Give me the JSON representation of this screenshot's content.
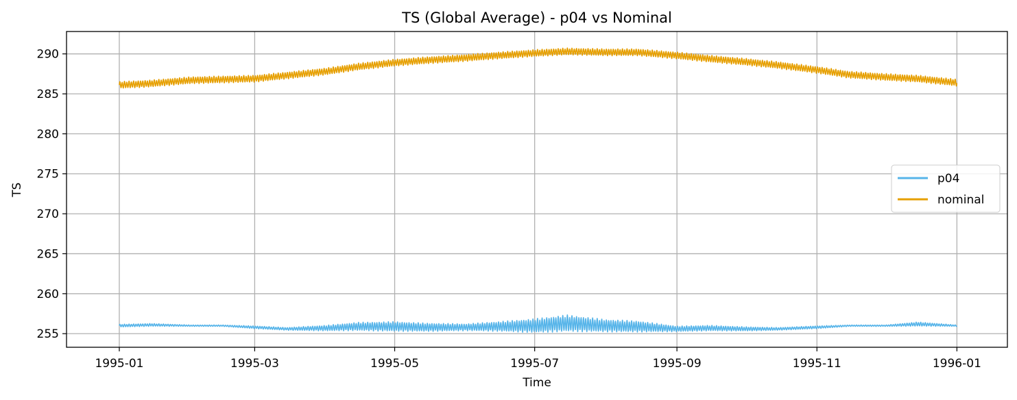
{
  "chart_data": {
    "type": "line",
    "title": "TS (Global Average) - p04 vs Nominal",
    "xlabel": "Time",
    "ylabel": "TS",
    "xlim": [
      "1994-12-09",
      "1996-01-23"
    ],
    "ylim": [
      253.3,
      292.8
    ],
    "grid": true,
    "legend_position": "right",
    "x_ticks": [
      "1995-01",
      "1995-03",
      "1995-05",
      "1995-07",
      "1995-09",
      "1995-11",
      "1996-01"
    ],
    "y_ticks": [
      255,
      260,
      265,
      270,
      275,
      280,
      285,
      290
    ],
    "series": [
      {
        "name": "p04",
        "color": "#56B4E9",
        "x": [
          "1995-01-01",
          "1995-01-15",
          "1995-02-01",
          "1995-02-15",
          "1995-03-01",
          "1995-03-15",
          "1995-04-01",
          "1995-04-15",
          "1995-05-01",
          "1995-05-15",
          "1995-06-01",
          "1995-06-15",
          "1995-07-01",
          "1995-07-15",
          "1995-08-01",
          "1995-08-15",
          "1995-09-01",
          "1995-09-15",
          "1995-10-01",
          "1995-10-15",
          "1995-11-01",
          "1995-11-15",
          "1995-12-01",
          "1995-12-15",
          "1996-01-01"
        ],
        "mean": [
          256.0,
          256.1,
          256.0,
          256.0,
          255.8,
          255.6,
          255.7,
          255.9,
          255.9,
          255.8,
          255.8,
          255.9,
          256.0,
          256.3,
          256.0,
          255.9,
          255.6,
          255.7,
          255.6,
          255.6,
          255.8,
          256.0,
          256.0,
          256.2,
          256.0
        ],
        "amplitude": [
          0.2,
          0.2,
          0.1,
          0.1,
          0.2,
          0.2,
          0.4,
          0.6,
          0.7,
          0.6,
          0.5,
          0.7,
          1.0,
          1.2,
          0.9,
          0.8,
          0.4,
          0.4,
          0.3,
          0.2,
          0.2,
          0.1,
          0.1,
          0.3,
          0.1
        ]
      },
      {
        "name": "nominal",
        "color": "#E69F00",
        "x": [
          "1995-01-01",
          "1995-01-15",
          "1995-02-01",
          "1995-02-15",
          "1995-03-01",
          "1995-03-15",
          "1995-04-01",
          "1995-04-15",
          "1995-05-01",
          "1995-05-15",
          "1995-06-01",
          "1995-06-15",
          "1995-07-01",
          "1995-07-15",
          "1995-08-01",
          "1995-08-15",
          "1995-09-01",
          "1995-09-15",
          "1995-10-01",
          "1995-10-15",
          "1995-11-01",
          "1995-11-15",
          "1995-12-01",
          "1995-12-15",
          "1996-01-01"
        ],
        "mean": [
          286.1,
          286.3,
          286.7,
          286.8,
          286.9,
          287.3,
          287.8,
          288.4,
          288.9,
          289.2,
          289.5,
          289.8,
          290.1,
          290.3,
          290.2,
          290.2,
          289.8,
          289.4,
          289.0,
          288.6,
          288.0,
          287.4,
          287.1,
          286.9,
          286.4
        ],
        "amplitude": [
          0.5,
          0.5,
          0.5,
          0.5,
          0.5,
          0.5,
          0.5,
          0.5,
          0.5,
          0.5,
          0.5,
          0.5,
          0.5,
          0.5,
          0.5,
          0.5,
          0.5,
          0.5,
          0.5,
          0.5,
          0.5,
          0.5,
          0.5,
          0.5,
          0.5
        ]
      }
    ]
  }
}
